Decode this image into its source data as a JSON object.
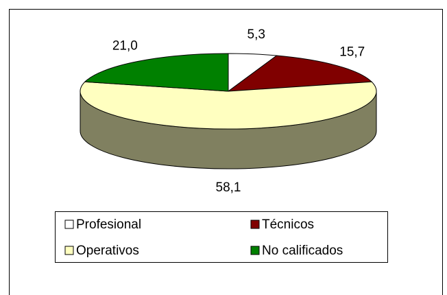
{
  "chart_data": {
    "type": "pie",
    "categories": [
      "Profesional",
      "Técnicos",
      "Operativos",
      "No calificados"
    ],
    "values": [
      5.3,
      15.7,
      58.1,
      21.0
    ],
    "value_labels": [
      "5,3",
      "15,7",
      "58,1",
      "21,0"
    ],
    "colors": [
      "#ffffff",
      "#800000",
      "#ffffc0",
      "#008000"
    ],
    "legend": "bottom"
  }
}
